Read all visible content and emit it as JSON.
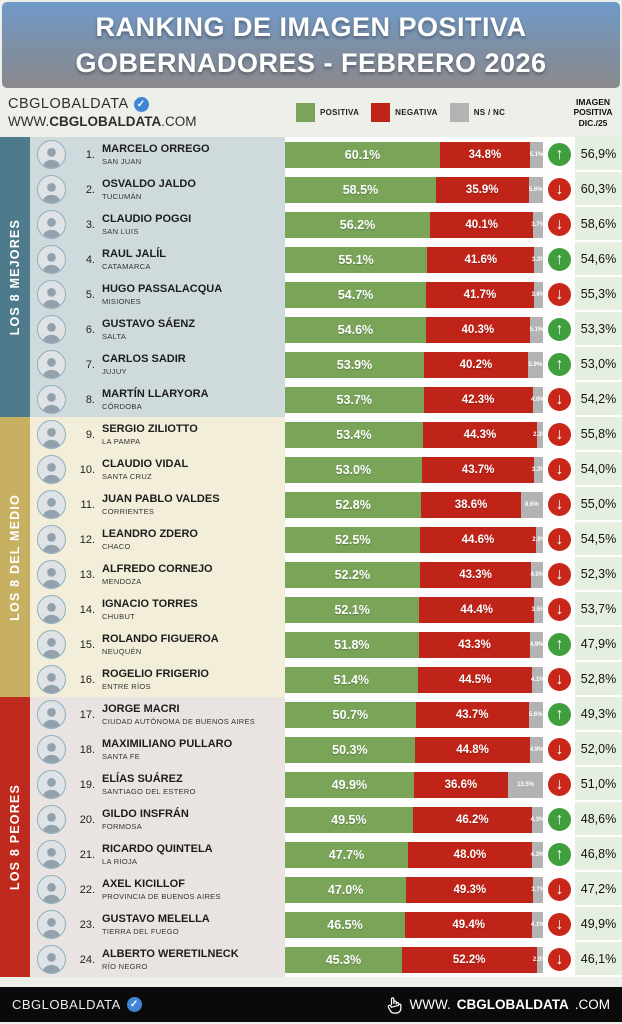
{
  "header": {
    "line1": "RANKING DE IMAGEN POSITIVA",
    "line2": "GOBERNADORES - FEBRERO 2026"
  },
  "brand": {
    "name": "CBGLOBALDATA",
    "verified_badge": "✓",
    "url_www": "WWW.",
    "url_name": "CBGLOBALDATA",
    "url_tld": ".COM"
  },
  "legend": [
    {
      "label": "POSITIVA",
      "color": "#7aa559"
    },
    {
      "label": "NEGATIVA",
      "color": "#c02318"
    },
    {
      "label": "NS / NC",
      "color": "#b3b3b3"
    }
  ],
  "right_column_header": {
    "line1": "IMAGEN",
    "line2": "POSITIVA",
    "line3": "DIC./25"
  },
  "sections": [
    {
      "label": "LOS 8 MEJORES",
      "sidebar_color": "#4e7b8b",
      "row_bg": "#cfdadd",
      "rows": [
        {
          "rank": "1.",
          "name": "MARCELO ORREGO",
          "province": "SAN JUAN",
          "positiva": "60.1%",
          "negativa": "34.8%",
          "nsnc": "5.1%",
          "trend": "up",
          "dic25": "56,9%"
        },
        {
          "rank": "2.",
          "name": "OSVALDO JALDO",
          "province": "TUCUMÁN",
          "positiva": "58.5%",
          "negativa": "35.9%",
          "nsnc": "5.6%",
          "trend": "down",
          "dic25": "60,3%"
        },
        {
          "rank": "3.",
          "name": "CLAUDIO POGGI",
          "province": "SAN LUIS",
          "positiva": "56.2%",
          "negativa": "40.1%",
          "nsnc": "3.7%",
          "trend": "down",
          "dic25": "58,6%"
        },
        {
          "rank": "4.",
          "name": "RAUL JALÍL",
          "province": "CATAMARCA",
          "positiva": "55.1%",
          "negativa": "41.6%",
          "nsnc": "3.3%",
          "trend": "up",
          "dic25": "54,6%"
        },
        {
          "rank": "5.",
          "name": "HUGO PASSALACQUA",
          "province": "MISIONES",
          "positiva": "54.7%",
          "negativa": "41.7%",
          "nsnc": "3.6%",
          "trend": "down",
          "dic25": "55,3%"
        },
        {
          "rank": "6.",
          "name": "GUSTAVO SÁENZ",
          "province": "SALTA",
          "positiva": "54.6%",
          "negativa": "40.3%",
          "nsnc": "5.1%",
          "trend": "up",
          "dic25": "53,3%"
        },
        {
          "rank": "7.",
          "name": "CARLOS SADIR",
          "province": "JUJUY",
          "positiva": "53.9%",
          "negativa": "40.2%",
          "nsnc": "5.9%",
          "trend": "up",
          "dic25": "53,0%"
        },
        {
          "rank": "8.",
          "name": "MARTÍN LLARYORA",
          "province": "CÓRDOBA",
          "positiva": "53.7%",
          "negativa": "42.3%",
          "nsnc": "4.0%",
          "trend": "down",
          "dic25": "54,2%"
        }
      ]
    },
    {
      "label": "LOS 8 DEL MEDIO",
      "sidebar_color": "#c8b063",
      "row_bg": "#f3eed9",
      "rows": [
        {
          "rank": "9.",
          "name": "SERGIO ZILIOTTO",
          "province": "LA PAMPA",
          "positiva": "53.4%",
          "negativa": "44.3%",
          "nsnc": "2.3%",
          "trend": "down",
          "dic25": "55,8%"
        },
        {
          "rank": "10.",
          "name": "CLAUDIO VIDAL",
          "province": "SANTA CRUZ",
          "positiva": "53.0%",
          "negativa": "43.7%",
          "nsnc": "3.3%",
          "trend": "down",
          "dic25": "54,0%"
        },
        {
          "rank": "11.",
          "name": "JUAN PABLO VALDES",
          "province": "CORRIENTES",
          "positiva": "52.8%",
          "negativa": "38.6%",
          "nsnc": "8.6%",
          "trend": "down",
          "dic25": "55,0%"
        },
        {
          "rank": "12.",
          "name": "LEANDRO ZDERO",
          "province": "CHACO",
          "positiva": "52.5%",
          "negativa": "44.6%",
          "nsnc": "2.9%",
          "trend": "down",
          "dic25": "54,5%"
        },
        {
          "rank": "13.",
          "name": "ALFREDO CORNEJO",
          "province": "MENDOZA",
          "positiva": "52.2%",
          "negativa": "43.3%",
          "nsnc": "4.5%",
          "trend": "down",
          "dic25": "52,3%"
        },
        {
          "rank": "14.",
          "name": "IGNACIO TORRES",
          "province": "CHUBUT",
          "positiva": "52.1%",
          "negativa": "44.4%",
          "nsnc": "3.5%",
          "trend": "down",
          "dic25": "53,7%"
        },
        {
          "rank": "15.",
          "name": "ROLANDO FIGUEROA",
          "province": "NEUQUÉN",
          "positiva": "51.8%",
          "negativa": "43.3%",
          "nsnc": "4.9%",
          "trend": "up",
          "dic25": "47,9%"
        },
        {
          "rank": "16.",
          "name": "ROGELIO FRIGERIO",
          "province": "ENTRE RÍOS",
          "positiva": "51.4%",
          "negativa": "44.5%",
          "nsnc": "4.1%",
          "trend": "down",
          "dic25": "52,8%"
        }
      ]
    },
    {
      "label": "LOS 8 PEORES",
      "sidebar_color": "#bf2a1e",
      "row_bg": "#e9e4e1",
      "rows": [
        {
          "rank": "17.",
          "name": "JORGE MACRI",
          "province": "CIUDAD AUTÓNOMA DE BUENOS AIRES",
          "positiva": "50.7%",
          "negativa": "43.7%",
          "nsnc": "5.6%",
          "trend": "up",
          "dic25": "49,3%"
        },
        {
          "rank": "18.",
          "name": "MAXIMILIANO PULLARO",
          "province": "SANTA FE",
          "positiva": "50.3%",
          "negativa": "44.8%",
          "nsnc": "4.9%",
          "trend": "down",
          "dic25": "52,0%"
        },
        {
          "rank": "19.",
          "name": "ELÍAS SUÁREZ",
          "province": "SANTIAGO DEL ESTERO",
          "positiva": "49.9%",
          "negativa": "36.6%",
          "nsnc": "13.5%",
          "trend": "down",
          "dic25": "51,0%"
        },
        {
          "rank": "20.",
          "name": "GILDO INSFRÁN",
          "province": "FORMOSA",
          "positiva": "49.5%",
          "negativa": "46.2%",
          "nsnc": "4.3%",
          "trend": "up",
          "dic25": "48,6%"
        },
        {
          "rank": "21.",
          "name": "RICARDO QUINTELA",
          "province": "LA RIOJA",
          "positiva": "47.7%",
          "negativa": "48.0%",
          "nsnc": "4.3%",
          "trend": "up",
          "dic25": "46,8%"
        },
        {
          "rank": "22.",
          "name": "AXEL KICILLOF",
          "province": "PROVINCIA DE BUENOS AIRES",
          "positiva": "47.0%",
          "negativa": "49.3%",
          "nsnc": "3.7%",
          "trend": "down",
          "dic25": "47,2%"
        },
        {
          "rank": "23.",
          "name": "GUSTAVO MELELLA",
          "province": "TIERRA DEL FUEGO",
          "positiva": "46.5%",
          "negativa": "49.4%",
          "nsnc": "4.1%",
          "trend": "down",
          "dic25": "49,9%"
        },
        {
          "rank": "24.",
          "name": "ALBERTO WERETILNECK",
          "province": "RÍO NEGRO",
          "positiva": "45.3%",
          "negativa": "52.2%",
          "nsnc": "2.5%",
          "trend": "down",
          "dic25": "46,1%"
        }
      ]
    }
  ],
  "footer": {
    "brand": "CBGLOBALDATA",
    "verified_badge": "✓",
    "url_www": "WWW.",
    "url_name": "CBGLOBALDATA",
    "url_tld": ".COM"
  },
  "chart_data": {
    "type": "bar",
    "subtype": "horizontal-stacked",
    "title": "RANKING DE IMAGEN POSITIVA GOBERNADORES - FEBRERO 2026",
    "legend_position": "top",
    "xlim": [
      0,
      100
    ],
    "categories": [
      "MARCELO ORREGO",
      "OSVALDO JALDO",
      "CLAUDIO POGGI",
      "RAUL JALÍL",
      "HUGO PASSALACQUA",
      "GUSTAVO SÁENZ",
      "CARLOS SADIR",
      "MARTÍN LLARYORA",
      "SERGIO ZILIOTTO",
      "CLAUDIO VIDAL",
      "JUAN PABLO VALDES",
      "LEANDRO ZDERO",
      "ALFREDO CORNEJO",
      "IGNACIO TORRES",
      "ROLANDO FIGUEROA",
      "ROGELIO FRIGERIO",
      "JORGE MACRI",
      "MAXIMILIANO PULLARO",
      "ELÍAS SUÁREZ",
      "GILDO INSFRÁN",
      "RICARDO QUINTELA",
      "AXEL KICILLOF",
      "GUSTAVO MELELLA",
      "ALBERTO WERETILNECK"
    ],
    "provinces": [
      "SAN JUAN",
      "TUCUMÁN",
      "SAN LUIS",
      "CATAMARCA",
      "MISIONES",
      "SALTA",
      "JUJUY",
      "CÓRDOBA",
      "LA PAMPA",
      "SANTA CRUZ",
      "CORRIENTES",
      "CHACO",
      "MENDOZA",
      "CHUBUT",
      "NEUQUÉN",
      "ENTRE RÍOS",
      "CIUDAD AUTÓNOMA DE BUENOS AIRES",
      "SANTA FE",
      "SANTIAGO DEL ESTERO",
      "FORMOSA",
      "LA RIOJA",
      "PROVINCIA DE BUENOS AIRES",
      "TIERRA DEL FUEGO",
      "RÍO NEGRO"
    ],
    "series": [
      {
        "name": "POSITIVA",
        "color": "#7aa559",
        "values": [
          60.1,
          58.5,
          56.2,
          55.1,
          54.7,
          54.6,
          53.9,
          53.7,
          53.4,
          53.0,
          52.8,
          52.5,
          52.2,
          52.1,
          51.8,
          51.4,
          50.7,
          50.3,
          49.9,
          49.5,
          47.7,
          47.0,
          46.5,
          45.3
        ]
      },
      {
        "name": "NEGATIVA",
        "color": "#c02318",
        "values": [
          34.8,
          35.9,
          40.1,
          41.6,
          41.7,
          40.3,
          40.2,
          42.3,
          44.3,
          43.7,
          38.6,
          44.6,
          43.3,
          44.4,
          43.3,
          44.5,
          43.7,
          44.8,
          36.6,
          46.2,
          48.0,
          49.3,
          49.4,
          52.2
        ]
      },
      {
        "name": "NS / NC",
        "color": "#b3b3b3",
        "values": [
          5.1,
          5.6,
          3.7,
          3.3,
          3.6,
          5.1,
          5.9,
          4.0,
          2.3,
          3.3,
          8.6,
          2.9,
          4.5,
          3.5,
          4.9,
          4.1,
          5.6,
          4.9,
          13.5,
          4.3,
          4.3,
          3.7,
          4.1,
          2.5
        ]
      }
    ],
    "imagen_positiva_dic25": [
      56.9,
      60.3,
      58.6,
      54.6,
      55.3,
      53.3,
      53.0,
      54.2,
      55.8,
      54.0,
      55.0,
      54.5,
      52.3,
      53.7,
      47.9,
      52.8,
      49.3,
      52.0,
      51.0,
      48.6,
      46.8,
      47.2,
      49.9,
      46.1
    ],
    "trend_vs_dic25": [
      "up",
      "down",
      "down",
      "up",
      "down",
      "up",
      "up",
      "down",
      "down",
      "down",
      "down",
      "down",
      "down",
      "down",
      "up",
      "down",
      "up",
      "down",
      "down",
      "up",
      "up",
      "down",
      "down",
      "down"
    ],
    "groups": [
      {
        "label": "LOS 8 MEJORES",
        "range": [
          1,
          8
        ]
      },
      {
        "label": "LOS 8 DEL MEDIO",
        "range": [
          9,
          16
        ]
      },
      {
        "label": "LOS 8 PEORES",
        "range": [
          17,
          24
        ]
      }
    ]
  }
}
